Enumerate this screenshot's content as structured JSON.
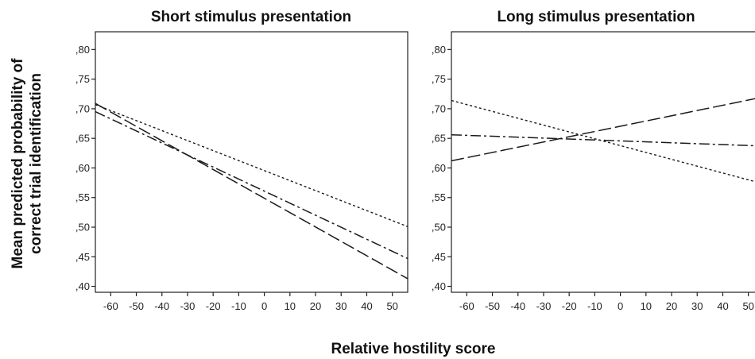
{
  "figure": {
    "ylabel_line1": "Mean predicted probability of",
    "ylabel_line2": "correct trial identification",
    "xlabel": "Relative hostility score"
  },
  "chart_data": [
    {
      "type": "line",
      "title": "Short stimulus presentation",
      "xlabel": "Relative hostility score",
      "ylabel": "Mean predicted probability of correct trial identification",
      "xlim": [
        -66,
        56
      ],
      "ylim": [
        0.39,
        0.83
      ],
      "x_ticks": [
        -60,
        -50,
        -40,
        -30,
        -20,
        -10,
        0,
        10,
        20,
        30,
        40,
        50
      ],
      "x_tick_labels": [
        "-60",
        "-50",
        "-40",
        "-30",
        "-20",
        "-10",
        "0",
        "10",
        "20",
        "30",
        "40",
        "50"
      ],
      "y_ticks": [
        0.4,
        0.45,
        0.5,
        0.55,
        0.6,
        0.65,
        0.7,
        0.75,
        0.8
      ],
      "y_tick_labels": [
        ",40",
        ",45",
        ",50",
        ",55",
        ",60",
        ",65",
        ",70",
        ",75",
        ",80"
      ],
      "grid": false,
      "series": [
        {
          "style": "dotted",
          "x": [
            -66,
            56
          ],
          "y": [
            0.707,
            0.501
          ]
        },
        {
          "style": "dash-dot",
          "x": [
            -66,
            56
          ],
          "y": [
            0.695,
            0.447
          ]
        },
        {
          "style": "dashed",
          "x": [
            -66,
            56
          ],
          "y": [
            0.709,
            0.413
          ]
        }
      ]
    },
    {
      "type": "line",
      "title": "Long stimulus presentation",
      "xlabel": "Relative hostility score",
      "ylabel": "",
      "xlim": [
        -66,
        56
      ],
      "ylim": [
        0.39,
        0.83
      ],
      "x_ticks": [
        -60,
        -50,
        -40,
        -30,
        -20,
        -10,
        0,
        10,
        20,
        30,
        40,
        50
      ],
      "x_tick_labels": [
        "-60",
        "-50",
        "-40",
        "-30",
        "-20",
        "-10",
        "0",
        "10",
        "20",
        "30",
        "40",
        "50"
      ],
      "y_ticks": [
        0.4,
        0.45,
        0.5,
        0.55,
        0.6,
        0.65,
        0.7,
        0.75,
        0.8
      ],
      "y_tick_labels": [
        ",40",
        ",45",
        ",50",
        ",55",
        ",60",
        ",65",
        ",70",
        ",75",
        ",80"
      ],
      "grid": false,
      "series": [
        {
          "style": "dotted",
          "x": [
            -66,
            56
          ],
          "y": [
            0.714,
            0.573
          ]
        },
        {
          "style": "dash-dot",
          "x": [
            -66,
            56
          ],
          "y": [
            0.656,
            0.637
          ]
        },
        {
          "style": "dashed",
          "x": [
            -66,
            56
          ],
          "y": [
            0.612,
            0.72
          ]
        }
      ]
    }
  ]
}
